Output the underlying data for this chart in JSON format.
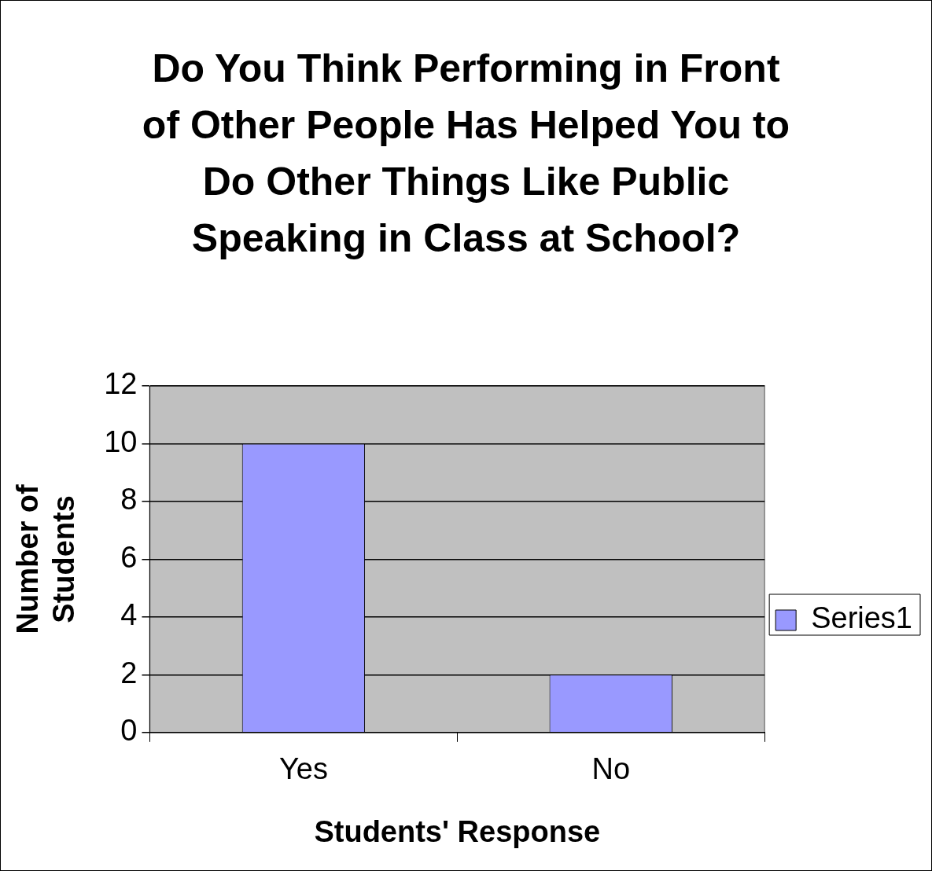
{
  "chart_data": {
    "type": "bar",
    "title": "Do You Think Performing in Front of Other People Has Helped You to Do Other Things Like Public Speaking in Class at School?",
    "xlabel": "Students' Response",
    "ylabel": "Number of Students",
    "categories": [
      "Yes",
      "No"
    ],
    "series": [
      {
        "name": "Series1",
        "color": "#9999ff",
        "values": [
          10,
          2
        ]
      }
    ],
    "ylim": [
      0,
      12
    ],
    "yticks": [
      0,
      2,
      4,
      6,
      8,
      10,
      12
    ],
    "grid": "y",
    "legend": "right"
  }
}
